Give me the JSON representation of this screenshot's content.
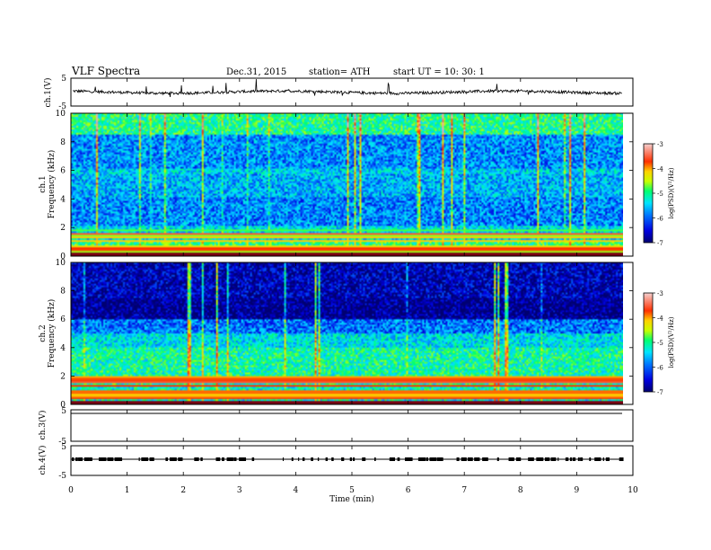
{
  "header": {
    "title": "VLF  Spectra",
    "date": "Dec.31, 2015",
    "station": "station= ATH",
    "start": "start  UT  =    10: 30: 1"
  },
  "colors": {
    "spectrogram_scale": [
      "#000070",
      "#0000e0",
      "#0078ff",
      "#00e4ff",
      "#00ff70",
      "#c8ff00",
      "#ffd200",
      "#ff3000",
      "#e8b0b0"
    ],
    "trace": "#000000"
  },
  "chart_data": [
    {
      "id": "ch1_voltage",
      "type": "line",
      "ylabel": "ch.1(V)",
      "ylim": [
        -5,
        5
      ],
      "yticks": [
        "5",
        "-5"
      ],
      "xlim": [
        0,
        10
      ],
      "baseline_value": 0,
      "noise_amplitude": 0.5
    },
    {
      "id": "ch1_spectrogram",
      "type": "heatmap",
      "ylabel_top": "ch.1",
      "ylabel": "Frequency  (kHz)",
      "ylim": [
        0,
        10
      ],
      "yticks": [
        "0",
        "2",
        "4",
        "6",
        "8",
        "10"
      ],
      "xlim": [
        0,
        9.8
      ],
      "colorbar": {
        "label": "log(PSD)(V²/Hz)",
        "range": [
          -7,
          -3
        ],
        "ticks": [
          "-3",
          "-4",
          "-5",
          "-6",
          "-7"
        ]
      }
    },
    {
      "id": "ch2_spectrogram",
      "type": "heatmap",
      "ylabel_top": "ch.2",
      "ylabel": "Frequency  (kHz)",
      "ylim": [
        0,
        10
      ],
      "yticks": [
        "0",
        "2",
        "4",
        "6",
        "8",
        "10"
      ],
      "xlim": [
        0,
        9.8
      ],
      "colorbar": {
        "label": "log(PSD)(V²/Hz)",
        "range": [
          -7,
          -3
        ],
        "ticks": [
          "-3",
          "-4",
          "-5",
          "-6",
          "-7"
        ]
      }
    },
    {
      "id": "ch3_voltage",
      "type": "line",
      "ylabel": "ch.3(V)",
      "ylim": [
        -5,
        5
      ],
      "yticks": [
        "5",
        "-5"
      ],
      "baseline_value": 0
    },
    {
      "id": "ch4_voltage",
      "type": "line",
      "ylabel": "ch.4(V)",
      "ylim": [
        -5,
        5
      ],
      "yticks": [
        "5",
        "-5"
      ],
      "baseline_value": 0
    }
  ],
  "xaxis": {
    "label": "Time  (min)",
    "ticks": [
      "0",
      "1",
      "2",
      "3",
      "4",
      "5",
      "6",
      "7",
      "8",
      "9",
      "10"
    ],
    "range": [
      0,
      10
    ]
  }
}
